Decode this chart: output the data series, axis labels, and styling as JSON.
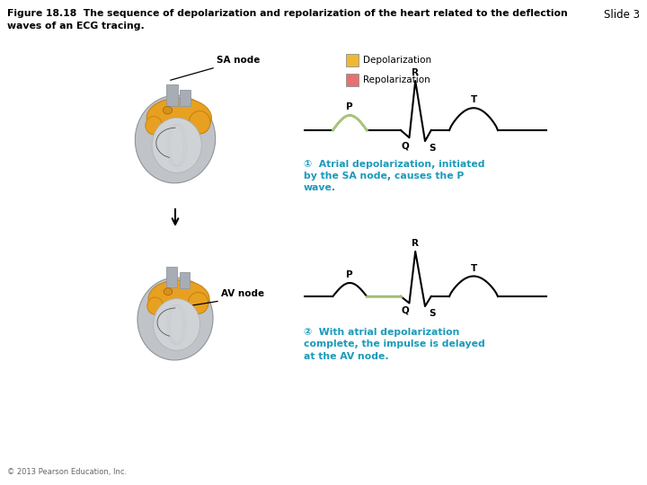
{
  "title_line1": "Figure 18.18  The sequence of depolarization and repolarization of the heart related to the deflection",
  "title_line2": "waves of an ECG tracing.",
  "slide_label": "Slide 3",
  "background_color": "#ffffff",
  "title_fontsize": 7.8,
  "slide_fontsize": 8.5,
  "copyright_text": "© 2013 Pearson Education, Inc.",
  "legend_depolarization": "Depolarization",
  "legend_repolarization": "Repolarization",
  "legend_depol_color": "#f0b830",
  "legend_repol_color": "#e87070",
  "sa_node_label": "SA node",
  "av_node_label": "AV node",
  "ecg1_annotation": "①  Atrial depolarization, initiated\nby the SA node, causes the P\nwave.",
  "ecg2_annotation": "②  With atrial depolarization\ncomplete, the impulse is delayed\nat the AV node.",
  "annotation_color": "#1a9aba",
  "ecg_line_color": "#000000",
  "ecg_highlight_color": "#a8c878",
  "arrow_color": "#000000",
  "label_color": "#000000",
  "heart_gray_outer": "#c0c4c8",
  "heart_gray_inner": "#d8dadc",
  "heart_gold": "#e8a020",
  "heart_gold_light": "#f0b830",
  "heart_tube_color": "#a8adb5"
}
